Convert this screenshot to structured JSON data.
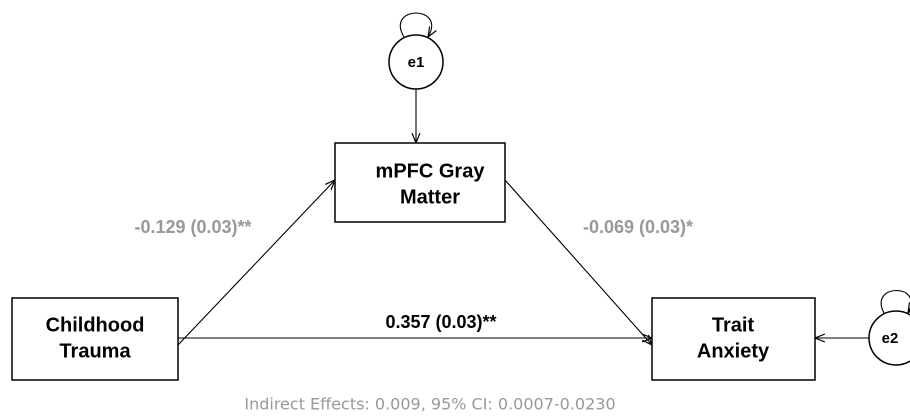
{
  "nodes": [
    {
      "id": "trauma",
      "lines": [
        "Childhood",
        "Trauma"
      ]
    },
    {
      "id": "mpfc",
      "lines": [
        "mPFC Gray",
        "Matter"
      ]
    },
    {
      "id": "anxiety",
      "lines": [
        "Trait",
        "Anxiety"
      ]
    },
    {
      "id": "e1",
      "lines": [
        "e1"
      ]
    },
    {
      "id": "e2",
      "lines": [
        "e2"
      ]
    }
  ],
  "edges": [
    {
      "from": "trauma",
      "to": "mpfc",
      "label": "-0.129 (0.03)**"
    },
    {
      "from": "mpfc",
      "to": "anxiety",
      "label": "-0.069 (0.03)*"
    },
    {
      "from": "trauma",
      "to": "anxiety",
      "label": "0.357 (0.03)**"
    }
  ],
  "footer": "Indirect Effects: 0.009, 95% CI: 0.0007-0.0230"
}
